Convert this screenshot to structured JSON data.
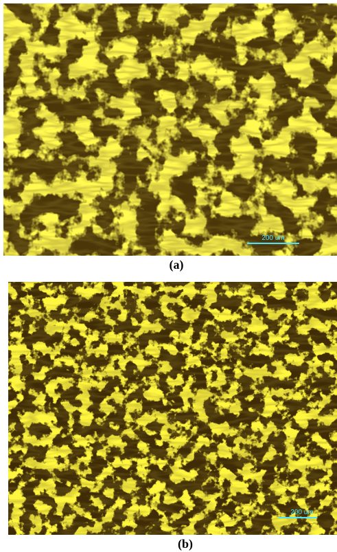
{
  "panels": [
    {
      "label": "(a)",
      "scale_bar": "200 um"
    },
    {
      "label": "(b)",
      "scale_bar": "200 um"
    }
  ]
}
